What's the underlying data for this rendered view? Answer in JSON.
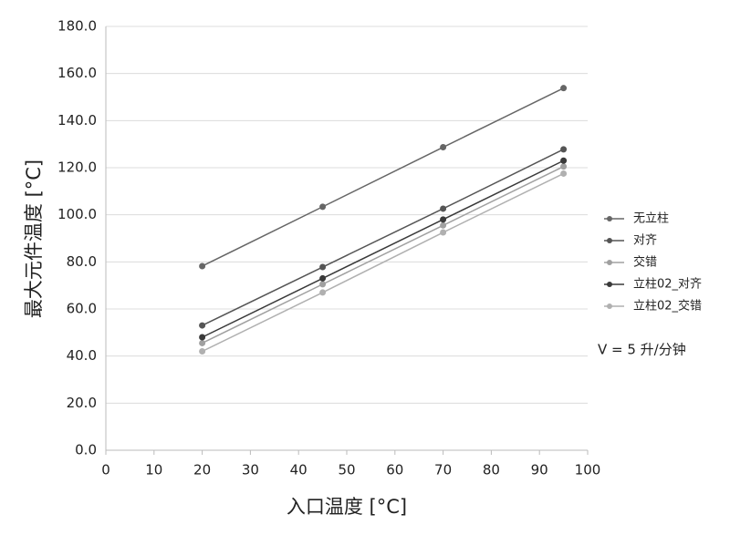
{
  "chart_data": {
    "type": "line",
    "x_label": "入口温度 [°C]",
    "y_label": "最大元件温度 [°C]",
    "annotation": "V = 5 升/分钟",
    "x": [
      20,
      45,
      70,
      95
    ],
    "series": [
      {
        "name": "无立柱",
        "color": "#666666",
        "values": [
          78.2,
          103.4,
          128.7,
          153.8
        ]
      },
      {
        "name": "对齐",
        "color": "#555555",
        "values": [
          53.0,
          77.8,
          102.6,
          127.8
        ]
      },
      {
        "name": "交错",
        "color": "#a0a0a0",
        "values": [
          45.5,
          70.5,
          95.5,
          120.5
        ]
      },
      {
        "name": "立柱02_对齐",
        "color": "#3a3a3a",
        "values": [
          48.0,
          73.0,
          98.0,
          123.0
        ]
      },
      {
        "name": "立柱02_交错",
        "color": "#b0b0b0",
        "values": [
          42.0,
          67.0,
          92.5,
          117.5
        ]
      }
    ],
    "xlim": [
      0,
      100
    ],
    "xticks": [
      0,
      10,
      20,
      30,
      40,
      50,
      60,
      70,
      80,
      90,
      100
    ],
    "ylim": [
      0,
      180
    ],
    "yticks": [
      {
        "value": 0,
        "label": "0.0"
      },
      {
        "value": 20,
        "label": "20.0"
      },
      {
        "value": 40,
        "label": "40.0"
      },
      {
        "value": 60,
        "label": "60.0"
      },
      {
        "value": 80,
        "label": "80.0"
      },
      {
        "value": 100,
        "label": "100.0"
      },
      {
        "value": 120,
        "label": "120.0"
      },
      {
        "value": 140,
        "label": "140.0"
      },
      {
        "value": 160,
        "label": "160.0"
      },
      {
        "value": 180,
        "label": "180.0"
      }
    ],
    "grid": true
  }
}
